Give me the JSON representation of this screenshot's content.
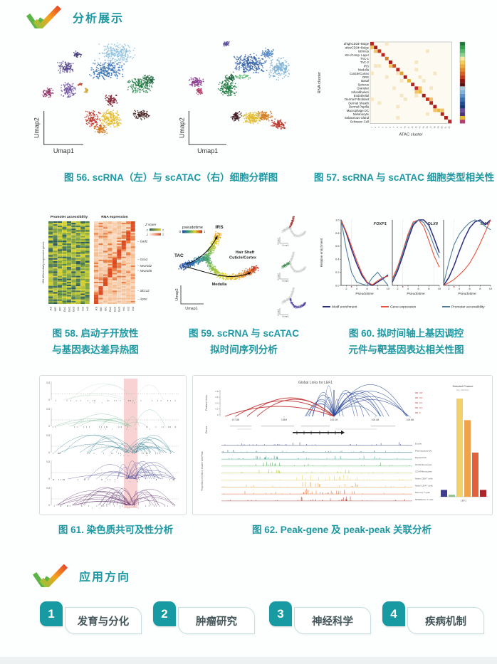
{
  "accent": {
    "teal": "#1e98a2"
  },
  "section_analysis": {
    "title": "分析展示"
  },
  "section_apps": {
    "title": "应用方向"
  },
  "captions": {
    "fig56": "图 56. scRNA（左）与 scATAC（右）细胞分群图",
    "fig57": "图 57. scRNA 与 scATAC 细胞类型相关性",
    "fig58_l1": "图 58. 启动子开放性",
    "fig58_l2": "与基因表达差异热图",
    "fig59_l1": "图 59. scRNA 与 scATAC",
    "fig59_l2": "拟时间序列分析",
    "fig60_l1": "图 60. 拟时间轴上基因调控",
    "fig60_l2": "元件与靶基因表达相关性图",
    "fig61": "图 61. 染色质共可及性分析",
    "fig62": "图 62. Peak-gene 及 peak-peak 关联分析"
  },
  "applications": [
    {
      "num": "1",
      "label": "发育与分化"
    },
    {
      "num": "2",
      "label": "肿瘤研究"
    },
    {
      "num": "3",
      "label": "神经科学"
    },
    {
      "num": "4",
      "label": "疾病机制"
    }
  ],
  "chart_data": [
    {
      "id": "umap_rna",
      "type": "scatter",
      "xlabel": "Umap1",
      "ylabel": "Umap2",
      "seed": 11,
      "clusters": [
        {
          "color": "#8fc1dd",
          "cx": 63,
          "cy": 16,
          "rx": 13,
          "ry": 8,
          "n": 260
        },
        {
          "color": "#3a72b5",
          "cx": 56,
          "cy": 29,
          "rx": 12,
          "ry": 8,
          "n": 260
        },
        {
          "color": "#1c7a40",
          "cx": 79,
          "cy": 40,
          "rx": 9,
          "ry": 7,
          "n": 180
        },
        {
          "color": "#145c32",
          "cx": 85,
          "cy": 36,
          "rx": 4,
          "ry": 4,
          "n": 60
        },
        {
          "color": "#411919",
          "cx": 80,
          "cy": 63,
          "rx": 6,
          "ry": 4,
          "n": 90
        },
        {
          "color": "#7c1f2d",
          "cx": 59,
          "cy": 52,
          "rx": 4.5,
          "ry": 5,
          "n": 90
        },
        {
          "color": "#e3bb2c",
          "cx": 59,
          "cy": 66,
          "rx": 8,
          "ry": 7,
          "n": 220
        },
        {
          "color": "#d07a22",
          "cx": 52,
          "cy": 74,
          "rx": 5,
          "ry": 4,
          "n": 90
        },
        {
          "color": "#c23127",
          "cx": 46,
          "cy": 66,
          "rx": 6,
          "ry": 7,
          "n": 120
        },
        {
          "color": "#6a4d9e",
          "cx": 30,
          "cy": 44,
          "rx": 5.5,
          "ry": 6,
          "n": 110
        },
        {
          "color": "#55448c",
          "cx": 28,
          "cy": 27,
          "rx": 6,
          "ry": 5,
          "n": 110
        },
        {
          "color": "#8c2f63",
          "cx": 16,
          "cy": 46,
          "rx": 4,
          "ry": 4,
          "n": 70
        },
        {
          "color": "#403a7a",
          "cx": 36,
          "cy": 17,
          "rx": 3,
          "ry": 2.5,
          "n": 40
        },
        {
          "color": "#c9a227",
          "cx": 42,
          "cy": 44,
          "rx": 1.5,
          "ry": 3,
          "n": 20
        },
        {
          "color": "#c0392b",
          "cx": 38,
          "cy": 40,
          "rx": 2,
          "ry": 1.5,
          "n": 15
        }
      ]
    },
    {
      "id": "umap_atac",
      "type": "scatter",
      "xlabel": "Umap1",
      "ylabel": "Umap2",
      "seed": 23,
      "clusters": [
        {
          "color": "#2f5fa8",
          "cx": 57,
          "cy": 24,
          "rx": 13,
          "ry": 8,
          "n": 280
        },
        {
          "color": "#79b0d6",
          "cx": 78,
          "cy": 28,
          "rx": 8,
          "ry": 9,
          "n": 200
        },
        {
          "color": "#4d86c6",
          "cx": 70,
          "cy": 16,
          "rx": 5,
          "ry": 4,
          "n": 80
        },
        {
          "color": "#1c7a40",
          "cx": 41,
          "cy": 43,
          "rx": 7,
          "ry": 7,
          "n": 170
        },
        {
          "color": "#145c32",
          "cx": 43,
          "cy": 35,
          "rx": 4,
          "ry": 3,
          "n": 60
        },
        {
          "color": "#6bbf7e",
          "cx": 52,
          "cy": 34,
          "rx": 6,
          "ry": 2,
          "n": 50
        },
        {
          "color": "#8a3a8f",
          "cx": 18,
          "cy": 38,
          "rx": 6,
          "ry": 4,
          "n": 110
        },
        {
          "color": "#b03560",
          "cx": 21,
          "cy": 45,
          "rx": 3,
          "ry": 3,
          "n": 50
        },
        {
          "color": "#3f1a22",
          "cx": 47,
          "cy": 64,
          "rx": 4,
          "ry": 4,
          "n": 80
        },
        {
          "color": "#e3bb2c",
          "cx": 59,
          "cy": 65,
          "rx": 8,
          "ry": 5,
          "n": 190
        },
        {
          "color": "#d07a22",
          "cx": 68,
          "cy": 64,
          "rx": 6,
          "ry": 4,
          "n": 110
        },
        {
          "color": "#b8352a",
          "cx": 78,
          "cy": 70,
          "rx": 6,
          "ry": 4,
          "n": 110
        },
        {
          "color": "#584a9e",
          "cx": 40,
          "cy": 9,
          "rx": 2.5,
          "ry": 2,
          "n": 40
        }
      ]
    },
    {
      "id": "corr",
      "type": "corr-heatmap",
      "seed": 7,
      "ylabel": "RNA cluster",
      "xlabel": "ATAC cluster",
      "rows": [
        "αhighCD34+Bulge",
        "αlowCD34+Bulge",
        "Isthmus",
        "K6+/Comp. Layer",
        "TAC-1",
        "TAC-2",
        "IRS",
        "Medulla",
        "Cuticle/Cortex",
        "ORS",
        "Basal",
        "Spinous",
        "Granular",
        "Infundibulum",
        "Endothelial",
        "Dermal Fibroblast",
        "Dermal Sheath",
        "Dermal Papilla",
        "Macrophage DC",
        "Melanocyte",
        "Sebaceous Gland",
        "Schwann Cell"
      ],
      "diag": [
        "#b5261e",
        "#a81c1c",
        "#c23b1f",
        "#b5261e",
        "#d9822b",
        "#a81c1c",
        "#c9541f",
        "#b5261e",
        "#e0a32e",
        "#a81c1c",
        "#e8b93a",
        "#b5261e",
        "#c1262b",
        "#e8b93a",
        "#a81c1c",
        "#c23b1f",
        "#b5261e",
        "#a81c1c",
        "#e8b93a",
        "#b5261e",
        "#a81c1c",
        "#c1262b"
      ],
      "colorbar": [
        "#1b7837",
        "#2f9e4f",
        "#57b86b",
        "#8ed08f",
        "#f7e8a0",
        "#f3cf5a",
        "#eead3a",
        "#e08a28",
        "#d4601f",
        "#c13a1a",
        "#8f1414",
        "#5e0f0f",
        "#a8cbe2",
        "#7fb2d6",
        "#5b93c6",
        "#3a6fb0",
        "#1f4e96",
        "#163a78",
        "#6a4d9e",
        "#4b3577",
        "#e3bb2c",
        "#b83a6e"
      ]
    },
    {
      "id": "dehm",
      "type": "dual-heatmap",
      "seed": 31,
      "left_title": "Promoter accessibility",
      "right_title": "RNA expression",
      "ylabel": "328 differentially expressed genes",
      "zscore": {
        "label": "Z score",
        "min": "-2",
        "max": "2"
      },
      "cols": [
        "AS",
        "MG",
        "OC",
        "Ex1",
        "Ex2",
        "Ex3",
        "In1",
        "In2",
        "In3"
      ],
      "genes": [
        {
          "name": "Gad2",
          "f": 0.24
        },
        {
          "name": "Gria3",
          "f": 0.46
        },
        {
          "name": "Neurod2",
          "f": 0.54
        },
        {
          "name": "Neurod6",
          "f": 0.6
        },
        {
          "name": "Slc1a2",
          "f": 0.84
        },
        {
          "name": "Apoe",
          "f": 0.94
        }
      ],
      "rows": 56
    },
    {
      "id": "ptime",
      "type": "pseudotime",
      "seed": 43,
      "legend": {
        "label": "pseudotime",
        "min": "0",
        "max": "1"
      },
      "labels": {
        "tac": "TAC",
        "irs": "IRS",
        "hs1": "Hair Shaft",
        "hs2": "Cuticle/Cortex",
        "med": "Medulla"
      },
      "xlabel": "Umap1",
      "ylabel": "Umap2",
      "branches": [
        {
          "pts": [
            [
              14,
              80
            ],
            [
              26,
              76
            ],
            [
              38,
              71
            ],
            [
              50,
              67
            ]
          ],
          "t0": 0,
          "t1": 0.33,
          "spread": 5,
          "n": 320
        },
        {
          "pts": [
            [
              50,
              67
            ],
            [
              57,
              55
            ],
            [
              63,
              43
            ],
            [
              67,
              33
            ]
          ],
          "t0": 0.33,
          "t1": 0.8,
          "spread": 5.5,
          "n": 300
        },
        {
          "pts": [
            [
              50,
              67
            ],
            [
              57,
              80
            ],
            [
              66,
              90
            ],
            [
              80,
              95
            ],
            [
              96,
              93
            ],
            [
              110,
              87
            ],
            [
              121,
              81
            ]
          ],
          "t0": 0.33,
          "t1": 1,
          "spread": 5,
          "n": 520
        }
      ],
      "insets": [
        {
          "color": "#9e2f2f",
          "branch": 1
        },
        {
          "color": "#3f8f4f",
          "branch": 0
        },
        {
          "color": "#4b3f9e",
          "branch": 2
        }
      ]
    },
    {
      "id": "enrich",
      "type": "multiline",
      "ylabel": "Relative enrichment",
      "xlabel": "Pseudotime",
      "x": [
        1,
        2,
        3,
        4,
        5,
        6,
        7,
        8,
        9,
        10
      ],
      "yticks": [
        "0.0",
        "0.2",
        "0.4",
        "0.6",
        "0.8",
        "1.0"
      ],
      "xticks": [
        2,
        4,
        6,
        8,
        10
      ],
      "panels": [
        {
          "gene": "FOXP1",
          "motif": [
            1,
            0.8,
            0.55,
            0.33,
            0.15,
            0.04,
            0,
            0.05,
            0.1,
            0.16
          ],
          "gene_expr": [
            1,
            0.82,
            0.6,
            0.38,
            0.18,
            0.05,
            0.01,
            0.07,
            0.12,
            0.14
          ],
          "promoter": [
            1,
            0.55,
            0.2,
            0.05,
            0.02,
            0,
            0.12,
            0.2,
            0.1,
            0
          ]
        },
        {
          "gene": "DLX6",
          "motif": [
            0.05,
            0.22,
            0.45,
            0.7,
            0.92,
            1,
            1,
            0.92,
            0.72,
            0.5
          ],
          "gene_expr": [
            0.1,
            0.28,
            0.52,
            0.78,
            0.97,
            1,
            0.9,
            0.68,
            0.45,
            0.28
          ],
          "promoter": [
            0.07,
            0.25,
            0.5,
            0.75,
            0.95,
            1,
            0.96,
            0.82,
            0.6,
            0.42
          ]
        },
        {
          "gene": "MAF",
          "motif": [
            0,
            0.12,
            0.3,
            0.52,
            0.72,
            0.88,
            0.97,
            1,
            0.93,
            1
          ],
          "gene_expr": [
            0,
            0.04,
            0.09,
            0.16,
            0.24,
            0.34,
            0.48,
            0.64,
            0.82,
            1
          ],
          "promoter": [
            0.02,
            0.35,
            0.62,
            0.78,
            0.88,
            0.96,
            1,
            0.97,
            0.9,
            0.85
          ]
        }
      ],
      "legend": [
        {
          "label": "Motif enrichment",
          "color": "#2b2d7e"
        },
        {
          "label": "Gene expression",
          "color": "#e8503a"
        },
        {
          "label": "Promoter accessibility",
          "color": "#4f7f9b"
        }
      ]
    },
    {
      "id": "coaccess",
      "type": "arc-tracks",
      "seed": 57,
      "ymax": "0.8",
      "ymin": "0",
      "colors": [
        "#c3dcc9",
        "#7fc09a",
        "#2e7f93",
        "#4a4a94",
        "#5e2d68"
      ],
      "arcs_n": [
        5,
        10,
        26,
        24,
        30
      ],
      "highlight": {
        "x1": 118,
        "x2": 137,
        "color": "rgba(238,140,140,0.38)"
      }
    },
    {
      "id": "links",
      "type": "links-panel",
      "seed": 71,
      "title": "Global Links for LEF1",
      "links_ylabel": "Feature Links",
      "links_yticks": [
        "0.8",
        "0.6",
        "0.4",
        "0.2",
        "0"
      ],
      "xticks": [
        "107.8M",
        "108M",
        "108.2M",
        "108.4M",
        "108.6M"
      ],
      "corr_legend": [
        "0.8",
        "0.6",
        "0.4",
        "0.2",
        "0"
      ],
      "genes_label": "Genes",
      "prop_label": "Proportion of Cells in Cluster with Peak",
      "clusters": [
        {
          "label": "B cells",
          "color": "#2e3d7c"
        },
        {
          "label": "Plasmacytoid DC",
          "color": "#20707c"
        },
        {
          "label": "Myeloid DC",
          "color": "#2e9d8e"
        },
        {
          "label": "CD16 Monocytes",
          "color": "#59b05e"
        },
        {
          "label": "CD14 Monocytes",
          "color": "#b6c94b"
        },
        {
          "label": "Naive CD8 T cells",
          "color": "#ead45a"
        },
        {
          "label": "Naive CD4 T cells",
          "color": "#eaa03c"
        },
        {
          "label": "Memory T cells",
          "color": "#e06a33"
        },
        {
          "label": "NK/Effector T cells",
          "color": "#b03a2e"
        }
      ],
      "bar": {
        "title": "Selected Feature",
        "subtitle": "Avg. (Mol Ext.)",
        "xlabel": "LEF1",
        "bars": [
          {
            "v": 0.07,
            "color": "#3d3d8f"
          },
          {
            "v": 0.02,
            "color": "#8fbf8f"
          },
          {
            "v": 1.0,
            "color": "#f2d06b"
          },
          {
            "v": 0.78,
            "color": "#f0a24a"
          },
          {
            "v": 0.45,
            "color": "#e2613a"
          },
          {
            "v": 0.07,
            "color": "#a8252b"
          }
        ]
      }
    }
  ]
}
